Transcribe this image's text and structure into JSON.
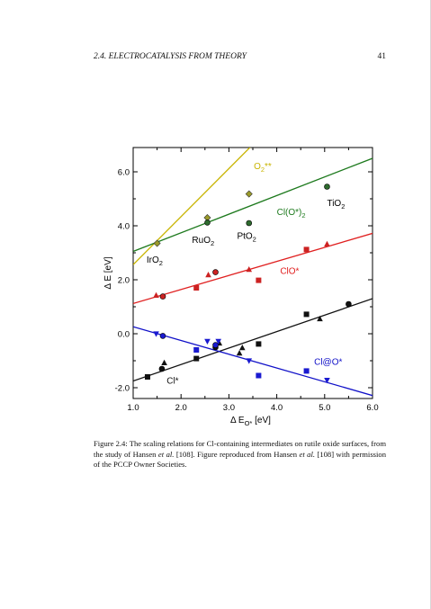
{
  "header": {
    "section": "2.4.  ELECTROCATALYSIS FROM THEORY",
    "page_number": "41"
  },
  "caption": {
    "label": "Figure 2.4:",
    "text_1": " The scaling relations for Cl-containing intermediates on rutile oxide surfaces, from the study of Hansen ",
    "etal_1": "et al.",
    "text_2": " [108].  Figure reproduced from Hansen ",
    "etal_2": "et al.",
    "text_3": " [108] with permission of the PCCP Owner Societies."
  },
  "chart_data": {
    "type": "scatter",
    "xlabel": "Δ E",
    "xlabel_sub": "O*",
    "xlabel_unit": " [eV]",
    "ylabel": "Δ E [eV]",
    "xlim": [
      1.0,
      6.0
    ],
    "ylim": [
      -2.4,
      6.9
    ],
    "x_ticks": [
      1.0,
      2.0,
      3.0,
      4.0,
      5.0,
      6.0
    ],
    "x_tick_labels": [
      "1.0",
      "2.0",
      "3.0",
      "4.0",
      "5.0",
      "6.0"
    ],
    "y_ticks": [
      -2.0,
      0.0,
      2.0,
      4.0,
      6.0
    ],
    "y_tick_labels": [
      "-2.0",
      "0.0",
      "2.0",
      "4.0",
      "6.0"
    ],
    "oxide_labels": [
      {
        "text": "IrO",
        "sub": "2",
        "x": 1.28,
        "y": 2.63
      },
      {
        "text": "RuO",
        "sub": "2",
        "x": 2.23,
        "y": 3.37
      },
      {
        "text": "PtO",
        "sub": "2",
        "x": 3.17,
        "y": 3.52
      },
      {
        "text": "TiO",
        "sub": "2",
        "x": 5.05,
        "y": 4.73
      }
    ],
    "series": [
      {
        "name": "O2**",
        "color": "#c8b400",
        "marker_color": "#9a9a2a",
        "line": {
          "slope": 1.78,
          "intercept": 0.78
        },
        "label": {
          "text": "O",
          "sub": "2",
          "suffix": "**",
          "x": 3.52,
          "y": 6.1
        },
        "points": [
          {
            "x": 1.5,
            "y": 3.35,
            "m": "diamond"
          },
          {
            "x": 2.55,
            "y": 4.3,
            "m": "diamond"
          },
          {
            "x": 3.42,
            "y": 5.18,
            "m": "diamond"
          }
        ]
      },
      {
        "name": "Cl(O*)2",
        "color": "#1e7a1e",
        "marker_color": "#2e6b2e",
        "line": {
          "slope": 0.69,
          "intercept": 2.36
        },
        "label": {
          "text": "Cl(O*)",
          "sub": "2",
          "suffix": "",
          "x": 4.0,
          "y": 4.4
        },
        "points": [
          {
            "x": 2.55,
            "y": 4.12,
            "m": "circle"
          },
          {
            "x": 3.42,
            "y": 4.1,
            "m": "circle"
          },
          {
            "x": 5.05,
            "y": 5.45,
            "m": "circle"
          }
        ]
      },
      {
        "name": "ClO*",
        "color": "#e02020",
        "marker_color": "#cc2222",
        "line": {
          "slope": 0.52,
          "intercept": 0.6
        },
        "label": {
          "text": "ClO*",
          "sub": "",
          "suffix": "",
          "x": 4.07,
          "y": 2.22
        },
        "points": [
          {
            "x": 1.48,
            "y": 1.42,
            "m": "triangle"
          },
          {
            "x": 1.62,
            "y": 1.38,
            "m": "circle"
          },
          {
            "x": 2.32,
            "y": 1.7,
            "m": "square"
          },
          {
            "x": 2.57,
            "y": 2.18,
            "m": "triangle"
          },
          {
            "x": 2.72,
            "y": 2.28,
            "m": "circle"
          },
          {
            "x": 3.42,
            "y": 2.38,
            "m": "triangle"
          },
          {
            "x": 3.62,
            "y": 1.98,
            "m": "square"
          },
          {
            "x": 4.62,
            "y": 3.12,
            "m": "square"
          },
          {
            "x": 5.05,
            "y": 3.32,
            "m": "triangle"
          }
        ]
      },
      {
        "name": "Cl*",
        "color": "#111111",
        "marker_color": "#111111",
        "line": {
          "slope": 0.61,
          "intercept": -2.36
        },
        "label": {
          "text": "Cl*",
          "sub": "",
          "suffix": "",
          "x": 1.7,
          "y": -1.85
        },
        "points": [
          {
            "x": 1.3,
            "y": -1.6,
            "m": "square"
          },
          {
            "x": 1.6,
            "y": -1.3,
            "m": "circle"
          },
          {
            "x": 1.65,
            "y": -1.08,
            "m": "triangle"
          },
          {
            "x": 2.32,
            "y": -0.92,
            "m": "square"
          },
          {
            "x": 2.72,
            "y": -0.5,
            "m": "circle"
          },
          {
            "x": 2.8,
            "y": -0.35,
            "m": "triangle"
          },
          {
            "x": 3.22,
            "y": -0.72,
            "m": "triangle"
          },
          {
            "x": 3.28,
            "y": -0.52,
            "m": "triangle"
          },
          {
            "x": 3.62,
            "y": -0.38,
            "m": "square"
          },
          {
            "x": 4.62,
            "y": 0.72,
            "m": "square"
          },
          {
            "x": 4.9,
            "y": 0.55,
            "m": "triangle"
          },
          {
            "x": 5.5,
            "y": 1.1,
            "m": "circle"
          }
        ]
      },
      {
        "name": "Cl@O*",
        "color": "#1010c8",
        "marker_color": "#1a1ad0",
        "line": {
          "slope": -0.51,
          "intercept": 0.77
        },
        "label": {
          "text": "Cl@O*",
          "sub": "",
          "suffix": "",
          "x": 4.78,
          "y": -1.15
        },
        "points": [
          {
            "x": 1.48,
            "y": 0.0,
            "m": "invtriangle"
          },
          {
            "x": 1.62,
            "y": -0.08,
            "m": "circle"
          },
          {
            "x": 2.32,
            "y": -0.6,
            "m": "square"
          },
          {
            "x": 2.55,
            "y": -0.28,
            "m": "invtriangle"
          },
          {
            "x": 2.72,
            "y": -0.42,
            "m": "circle"
          },
          {
            "x": 2.78,
            "y": -0.28,
            "m": "invtriangle"
          },
          {
            "x": 3.42,
            "y": -1.0,
            "m": "invtriangle"
          },
          {
            "x": 3.62,
            "y": -1.55,
            "m": "square"
          },
          {
            "x": 4.62,
            "y": -1.38,
            "m": "square"
          },
          {
            "x": 5.05,
            "y": -1.72,
            "m": "invtriangle"
          }
        ]
      }
    ]
  }
}
